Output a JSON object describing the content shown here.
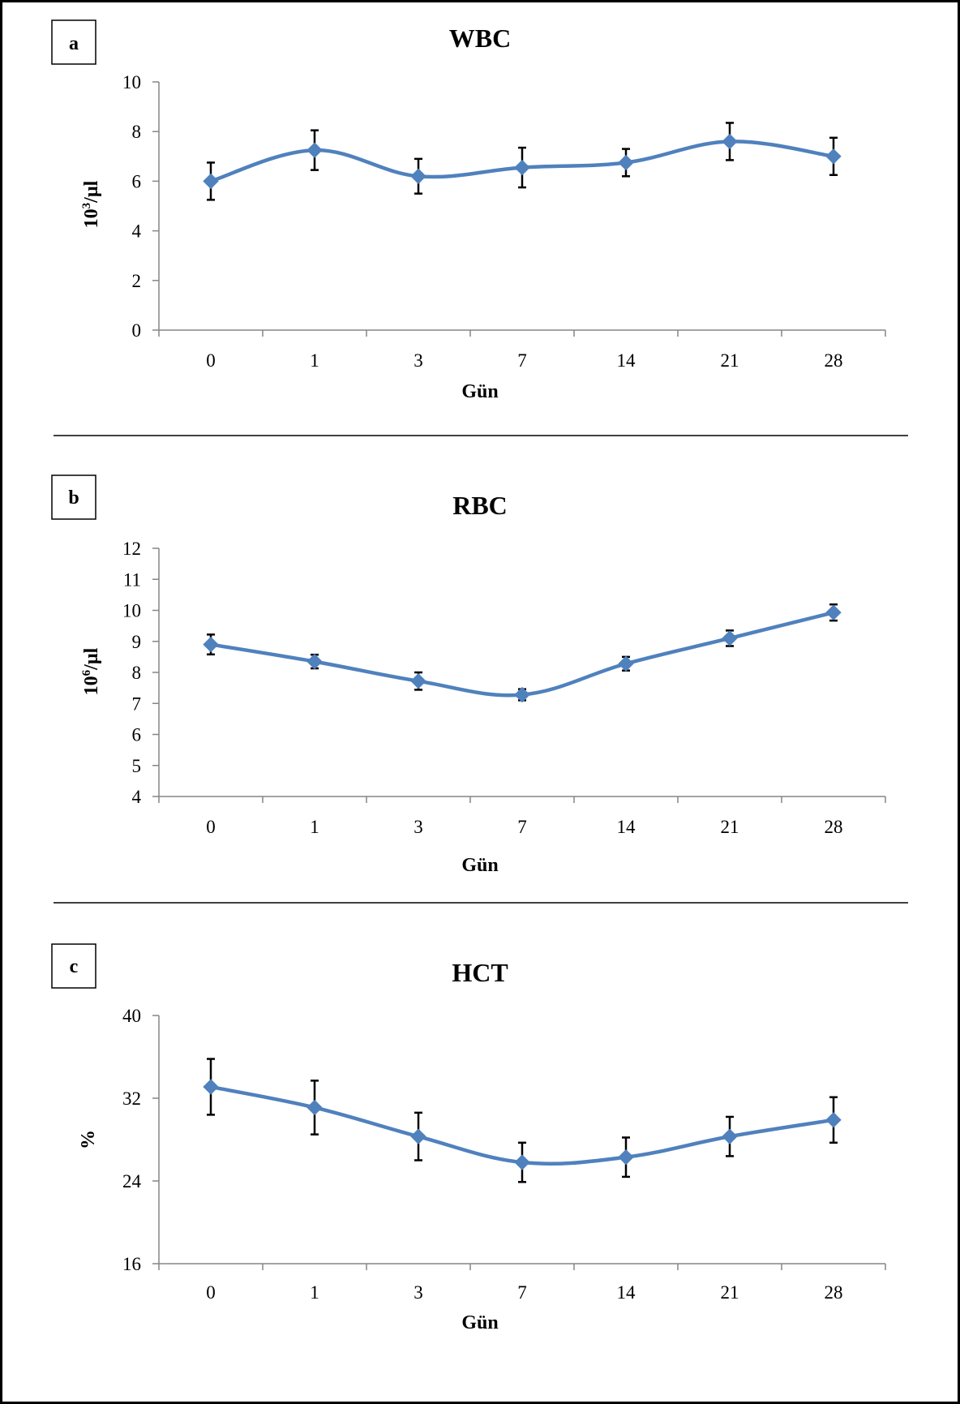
{
  "chart_data": [
    {
      "panel_label": "a",
      "type": "line",
      "title": "WBC",
      "xlabel": "Gün",
      "ylabel_base": "10",
      "ylabel_sup": "3",
      "ylabel_rest": "/µl",
      "categories": [
        "0",
        "1",
        "3",
        "7",
        "14",
        "21",
        "28"
      ],
      "values": [
        6.0,
        7.25,
        6.2,
        6.55,
        6.75,
        7.6,
        7.0
      ],
      "error": [
        0.75,
        0.8,
        0.7,
        0.8,
        0.55,
        0.75,
        0.75
      ],
      "ylim": [
        0,
        10
      ],
      "yticks": [
        "0",
        "2",
        "4",
        "6",
        "8",
        "10"
      ],
      "smooth": true,
      "marker": "diamond"
    },
    {
      "panel_label": "b",
      "type": "line",
      "title": "RBC",
      "xlabel": "Gün",
      "ylabel_base": "10",
      "ylabel_sup": "6",
      "ylabel_rest": "/µl",
      "categories": [
        "0",
        "1",
        "3",
        "7",
        "14",
        "21",
        "28"
      ],
      "values": [
        8.9,
        8.35,
        7.72,
        7.28,
        8.28,
        9.1,
        9.93
      ],
      "error": [
        0.32,
        0.22,
        0.28,
        0.18,
        0.22,
        0.25,
        0.26
      ],
      "ylim": [
        4,
        12
      ],
      "yticks": [
        "4",
        "5",
        "6",
        "7",
        "8",
        "9",
        "10",
        "11",
        "12"
      ],
      "smooth": true,
      "marker": "diamond"
    },
    {
      "panel_label": "c",
      "type": "line",
      "title": "HCT",
      "xlabel": "Gün",
      "ylabel_base": "%",
      "ylabel_sup": "",
      "ylabel_rest": "",
      "categories": [
        "0",
        "1",
        "3",
        "7",
        "14",
        "21",
        "28"
      ],
      "values": [
        33.1,
        31.1,
        28.3,
        25.8,
        26.3,
        28.3,
        29.9
      ],
      "error": [
        2.7,
        2.6,
        2.3,
        1.9,
        1.9,
        1.9,
        2.2
      ],
      "ylim": [
        16,
        40
      ],
      "yticks": [
        "16",
        "24",
        "32",
        "40"
      ],
      "smooth": true,
      "marker": "diamond"
    }
  ],
  "colors": {
    "series": "#4f81bd",
    "axis": "#868686",
    "error_bar": "#000000",
    "text": "#000000"
  }
}
